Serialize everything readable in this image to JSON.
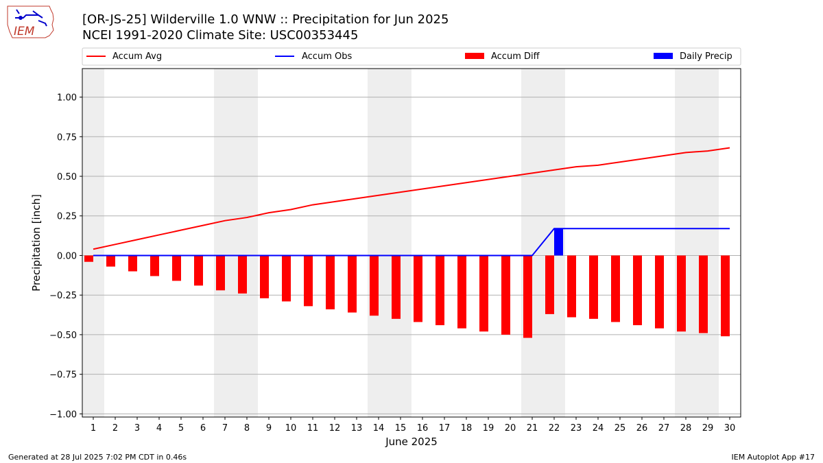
{
  "logo": {
    "text": "IEM"
  },
  "header": {
    "title": "[OR-JS-25] Wilderville 1.0 WNW :: Precipitation for Jun 2025",
    "subtitle": "NCEI 1991-2020 Climate Site: USC00353445"
  },
  "footer": {
    "left": "Generated at 28 Jul 2025 7:02 PM CDT in 0.46s",
    "right": "IEM Autoplot App #17"
  },
  "colors": {
    "avg": "#ff0000",
    "obs": "#0000ff",
    "diff": "#ff0000",
    "daily": "#0000ff",
    "weekend": "#eeeeee"
  },
  "chart_data": {
    "type": "bar",
    "xlabel": "June 2025",
    "ylabel": "Precipitation [inch]",
    "ylim": [
      -1.02,
      1.18
    ],
    "yticks": [
      1.0,
      0.75,
      0.5,
      0.25,
      0.0,
      -0.25,
      -0.5,
      -0.75,
      -1.0
    ],
    "ytick_labels": [
      "1.00",
      "0.75",
      "0.50",
      "0.25",
      "0.00",
      "−0.25",
      "−0.50",
      "−0.75",
      "−1.00"
    ],
    "grid": "horizontal",
    "legend_position": "top",
    "legend": [
      "Accum Avg",
      "Accum Obs",
      "Accum Diff",
      "Daily Precip"
    ],
    "weekend_days": [
      1,
      7,
      8,
      14,
      15,
      21,
      22,
      28,
      29
    ],
    "days": [
      1,
      2,
      3,
      4,
      5,
      6,
      7,
      8,
      9,
      10,
      11,
      12,
      13,
      14,
      15,
      16,
      17,
      18,
      19,
      20,
      21,
      22,
      23,
      24,
      25,
      26,
      27,
      28,
      29,
      30
    ],
    "series": [
      {
        "name": "Accum Avg",
        "type": "line",
        "values": [
          0.04,
          0.07,
          0.1,
          0.13,
          0.16,
          0.19,
          0.22,
          0.24,
          0.27,
          0.29,
          0.32,
          0.34,
          0.36,
          0.38,
          0.4,
          0.42,
          0.44,
          0.46,
          0.48,
          0.5,
          0.52,
          0.54,
          0.56,
          0.57,
          0.59,
          0.61,
          0.63,
          0.65,
          0.66,
          0.68
        ]
      },
      {
        "name": "Accum Obs",
        "type": "line",
        "values": [
          0,
          0,
          0,
          0,
          0,
          0,
          0,
          0,
          0,
          0,
          0,
          0,
          0,
          0,
          0,
          0,
          0,
          0,
          0,
          0,
          0,
          0.17,
          0.17,
          0.17,
          0.17,
          0.17,
          0.17,
          0.17,
          0.17,
          0.17
        ]
      },
      {
        "name": "Accum Diff",
        "type": "bar",
        "values": [
          -0.04,
          -0.07,
          -0.1,
          -0.13,
          -0.16,
          -0.19,
          -0.22,
          -0.24,
          -0.27,
          -0.29,
          -0.32,
          -0.34,
          -0.36,
          -0.38,
          -0.4,
          -0.42,
          -0.44,
          -0.46,
          -0.48,
          -0.5,
          -0.52,
          -0.37,
          -0.39,
          -0.4,
          -0.42,
          -0.44,
          -0.46,
          -0.48,
          -0.49,
          -0.51
        ]
      },
      {
        "name": "Daily Precip",
        "type": "bar",
        "values": [
          0,
          0,
          0,
          0,
          0,
          0,
          0,
          0,
          0,
          0,
          0,
          0,
          0,
          0,
          0,
          0,
          0,
          0,
          0,
          0,
          0,
          0.17,
          0,
          0,
          0,
          0,
          0,
          0,
          0,
          0
        ]
      }
    ]
  }
}
